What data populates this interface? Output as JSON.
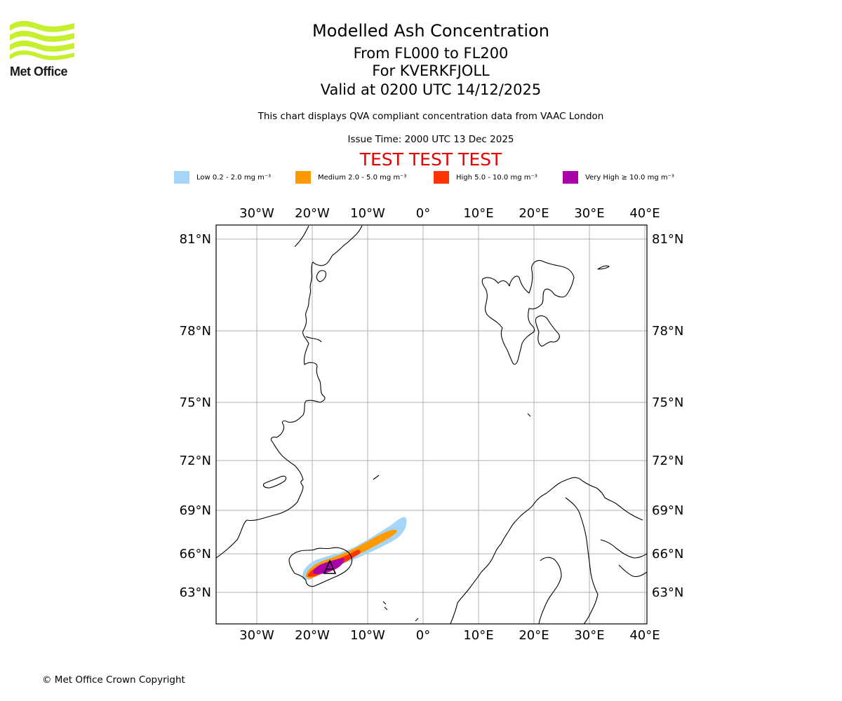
{
  "logo": {
    "text": "Met Office"
  },
  "title": {
    "line1": "Modelled Ash Concentration",
    "line2": "From FL000 to FL200",
    "line3": "For KVERKFJOLL",
    "line4": "Valid at 0200 UTC 14/12/2025"
  },
  "subtitle": "This chart displays QVA compliant concentration data from VAAC London",
  "issue_time": "Issue Time: 2000 UTC 13 Dec 2025",
  "test_banner": "TEST TEST TEST",
  "legend": [
    {
      "label": "Low 0.2 - 2.0 mg m⁻³",
      "color": "#a6d5fa"
    },
    {
      "label": "Medium 2.0 - 5.0 mg m⁻³",
      "color": "#ff9900"
    },
    {
      "label": "High 5.0 - 10.0 mg m⁻³",
      "color": "#ff3300"
    },
    {
      "label": "Very High  ≥  10.0 mg m⁻³",
      "color": "#aa00aa"
    }
  ],
  "map": {
    "lon_labels": [
      "30°W",
      "20°W",
      "10°W",
      "0°",
      "10°E",
      "20°E",
      "30°E",
      "40°E"
    ],
    "lat_labels": [
      "81°N",
      "78°N",
      "75°N",
      "72°N",
      "69°N",
      "66°N",
      "63°N"
    ],
    "volcano": "KVERKFJOLL",
    "colors": {
      "coast": "#000000",
      "grid": "#b0b0b0"
    }
  },
  "copyright": "© Met Office Crown Copyright"
}
